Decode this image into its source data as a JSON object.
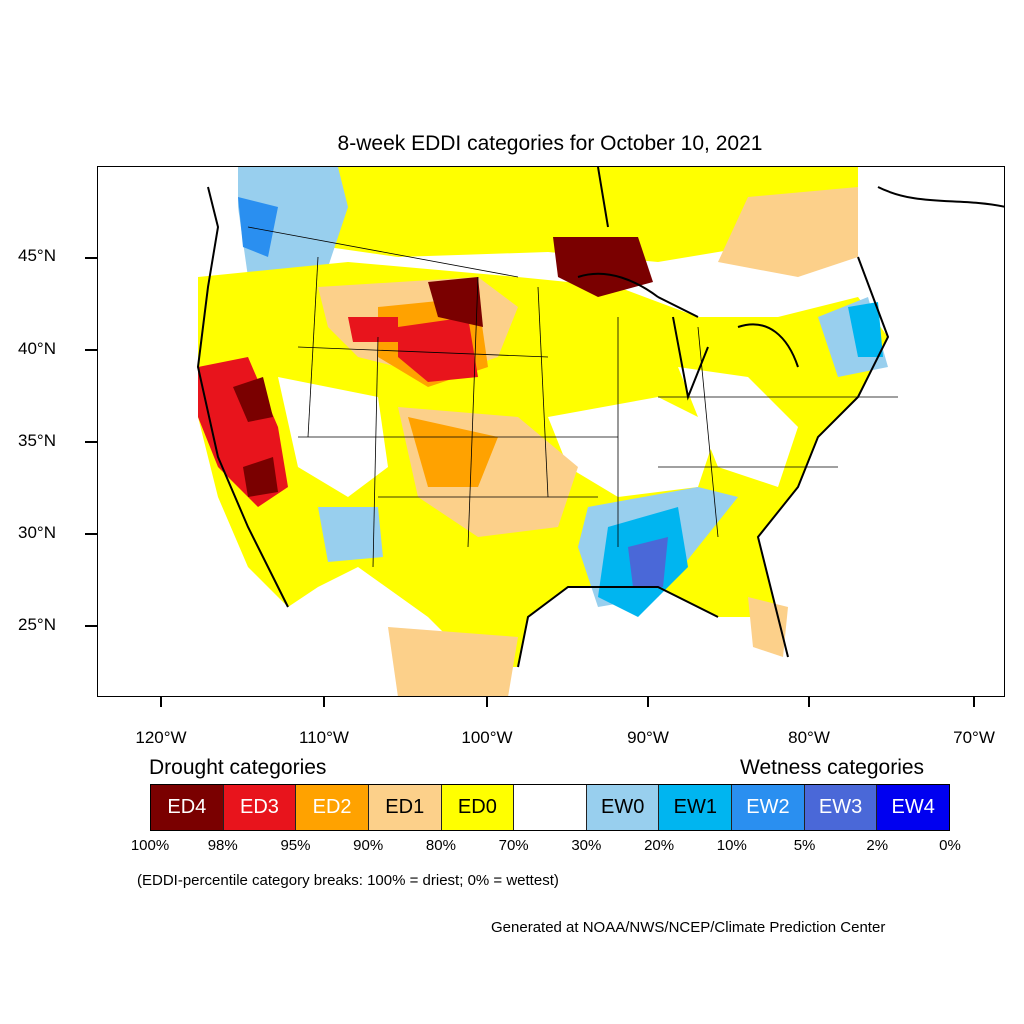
{
  "title": "8-week EDDI categories for October 10, 2021",
  "axes": {
    "lat_labels": [
      "45°N",
      "40°N",
      "35°N",
      "30°N",
      "25°N"
    ],
    "lon_labels": [
      "120°W",
      "110°W",
      "100°W",
      "90°W",
      "80°W",
      "70°W"
    ]
  },
  "legend": {
    "drought_title": "Drought categories",
    "wetness_title": "Wetness categories",
    "categories": [
      {
        "label": "ED4",
        "color": "#7a0000",
        "text_color": "#ffffff"
      },
      {
        "label": "ED3",
        "color": "#e8141c",
        "text_color": "#ffffff"
      },
      {
        "label": "ED2",
        "color": "#ffa200",
        "text_color": "#ffffff"
      },
      {
        "label": "ED1",
        "color": "#fcd08a",
        "text_color": "#000000"
      },
      {
        "label": "ED0",
        "color": "#ffff00",
        "text_color": "#000000"
      },
      {
        "label": "",
        "color": "#ffffff",
        "text_color": "#000000"
      },
      {
        "label": "EW0",
        "color": "#98cfee",
        "text_color": "#000000"
      },
      {
        "label": "EW1",
        "color": "#00b5f0",
        "text_color": "#000000"
      },
      {
        "label": "EW2",
        "color": "#2a8ff0",
        "text_color": "#ffffff"
      },
      {
        "label": "EW3",
        "color": "#4a68d8",
        "text_color": "#ffffff"
      },
      {
        "label": "EW4",
        "color": "#0000f0",
        "text_color": "#ffffff"
      }
    ],
    "percentiles": [
      "100%",
      "98%",
      "95%",
      "90%",
      "80%",
      "70%",
      "30%",
      "20%",
      "10%",
      "5%",
      "2%",
      "0%"
    ]
  },
  "note": "(EDDI-percentile category breaks: 100% = driest; 0% = wettest)",
  "credit": "Generated at NOAA/NWS/NCEP/Climate Prediction Center"
}
